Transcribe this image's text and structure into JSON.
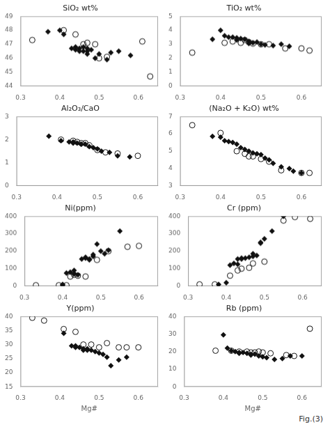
{
  "chart_data": [
    {
      "type": "scatter",
      "title": "SiO₂ wt%",
      "xlim": [
        0.3,
        0.65
      ],
      "xticks": [
        0.3,
        0.4,
        0.5,
        0.6
      ],
      "ylim": [
        44,
        49
      ],
      "yticks": [
        44,
        45,
        46,
        47,
        48,
        49
      ],
      "grid": false,
      "series": [
        {
          "marker": "diamond",
          "color": "#111111",
          "x": [
            0.37,
            0.4,
            0.41,
            0.43,
            0.44,
            0.44,
            0.45,
            0.45,
            0.46,
            0.46,
            0.47,
            0.47,
            0.47,
            0.48,
            0.49,
            0.5,
            0.52,
            0.53,
            0.55,
            0.58
          ],
          "values": [
            47.9,
            48.0,
            47.7,
            46.7,
            46.8,
            46.6,
            46.7,
            46.5,
            46.8,
            46.5,
            46.7,
            46.5,
            46.3,
            46.6,
            46.0,
            46.3,
            45.9,
            46.4,
            46.5,
            46.2
          ]
        },
        {
          "marker": "open_circle",
          "color": "#111111",
          "x": [
            0.33,
            0.41,
            0.44,
            0.46,
            0.47,
            0.49,
            0.5,
            0.52,
            0.61,
            0.63
          ],
          "values": [
            47.3,
            48.0,
            47.7,
            47.0,
            47.1,
            47.0,
            46.0,
            46.1,
            47.2,
            44.7
          ]
        }
      ]
    },
    {
      "type": "scatter",
      "title": "TiO₂ wt%",
      "xlim": [
        0.3,
        0.65
      ],
      "xticks": [
        0.3,
        0.4,
        0.5,
        0.6
      ],
      "ylim": [
        0,
        5
      ],
      "yticks": [
        0,
        1,
        2,
        3,
        4,
        5
      ],
      "grid": false,
      "series": [
        {
          "marker": "diamond",
          "color": "#111111",
          "x": [
            0.38,
            0.4,
            0.41,
            0.42,
            0.43,
            0.44,
            0.44,
            0.45,
            0.46,
            0.47,
            0.47,
            0.48,
            0.49,
            0.5,
            0.51,
            0.53,
            0.55,
            0.57
          ],
          "values": [
            3.35,
            4.0,
            3.6,
            3.5,
            3.5,
            3.45,
            3.3,
            3.4,
            3.35,
            3.2,
            3.05,
            3.1,
            3.15,
            3.0,
            2.95,
            2.9,
            3.0,
            2.85
          ]
        },
        {
          "marker": "open_circle",
          "color": "#111111",
          "x": [
            0.33,
            0.41,
            0.43,
            0.45,
            0.46,
            0.47,
            0.48,
            0.5,
            0.52,
            0.56,
            0.6,
            0.62
          ],
          "values": [
            2.4,
            3.1,
            3.2,
            3.1,
            3.3,
            3.15,
            3.05,
            3.0,
            3.0,
            2.7,
            2.7,
            2.55
          ]
        }
      ]
    },
    {
      "type": "scatter",
      "title": "Al₂O₃/CaO",
      "xlim": [
        0.3,
        0.65
      ],
      "xticks": [
        0.3,
        0.4,
        0.5,
        0.6
      ],
      "ylim": [
        0,
        3
      ],
      "yticks": [
        0,
        1,
        2,
        3
      ],
      "grid": false,
      "series": [
        {
          "marker": "diamond",
          "color": "#111111",
          "x": [
            0.38,
            0.41,
            0.43,
            0.44,
            0.44,
            0.45,
            0.46,
            0.46,
            0.47,
            0.48,
            0.49,
            0.5,
            0.51,
            0.53,
            0.55,
            0.58
          ],
          "values": [
            2.15,
            1.95,
            1.9,
            1.9,
            1.85,
            1.85,
            1.8,
            1.8,
            1.8,
            1.7,
            1.65,
            1.6,
            1.5,
            1.45,
            1.3,
            1.25
          ]
        },
        {
          "marker": "open_circle",
          "color": "#111111",
          "x": [
            0.41,
            0.44,
            0.45,
            0.46,
            0.47,
            0.48,
            0.5,
            0.52,
            0.55,
            0.6
          ],
          "values": [
            2.0,
            1.95,
            1.9,
            1.85,
            1.85,
            1.75,
            1.55,
            1.45,
            1.4,
            1.3
          ]
        }
      ]
    },
    {
      "type": "scatter",
      "title": "(Na₂O + K₂O) wt%",
      "xlim": [
        0.3,
        0.65
      ],
      "xticks": [
        0.3,
        0.4,
        0.5,
        0.6
      ],
      "ylim": [
        3.0,
        7.0
      ],
      "yticks": [
        3,
        4,
        5,
        6,
        7
      ],
      "grid": false,
      "series": [
        {
          "marker": "diamond",
          "color": "#111111",
          "x": [
            0.38,
            0.4,
            0.41,
            0.42,
            0.43,
            0.44,
            0.45,
            0.46,
            0.47,
            0.48,
            0.49,
            0.5,
            0.51,
            0.52,
            0.53,
            0.55,
            0.57,
            0.58,
            0.6
          ],
          "values": [
            5.85,
            5.8,
            5.6,
            5.55,
            5.5,
            5.4,
            5.2,
            5.1,
            5.0,
            4.9,
            4.85,
            4.8,
            4.6,
            4.5,
            4.3,
            4.1,
            4.0,
            3.85,
            3.75
          ]
        },
        {
          "marker": "open_circle",
          "color": "#111111",
          "x": [
            0.33,
            0.4,
            0.44,
            0.46,
            0.47,
            0.48,
            0.5,
            0.52,
            0.55,
            0.6,
            0.62
          ],
          "values": [
            6.5,
            6.05,
            5.0,
            4.85,
            4.7,
            4.7,
            4.55,
            4.4,
            3.9,
            3.75,
            3.75
          ]
        }
      ]
    },
    {
      "type": "scatter",
      "title": "Ni(ppm)",
      "xlim": [
        0.3,
        0.65
      ],
      "xticks": [
        0.3,
        0.4,
        0.5,
        0.6
      ],
      "ylim": [
        0,
        400
      ],
      "yticks": [
        0,
        100,
        200,
        300,
        400
      ],
      "grid": false,
      "series": [
        {
          "marker": "diamond",
          "color": "#111111",
          "x": [
            0.4,
            0.4,
            0.41,
            0.42,
            0.43,
            0.43,
            0.44,
            0.45,
            0.46,
            0.46,
            0.47,
            0.47,
            0.48,
            0.48,
            0.49,
            0.5,
            0.51,
            0.52,
            0.55
          ],
          "values": [
            5,
            10,
            75,
            80,
            90,
            70,
            65,
            155,
            160,
            165,
            155,
            150,
            170,
            180,
            240,
            200,
            185,
            205,
            315
          ]
        },
        {
          "marker": "open_circle",
          "color": "#111111",
          "x": [
            0.33,
            0.39,
            0.41,
            0.42,
            0.43,
            0.44,
            0.46,
            0.49,
            0.52,
            0.57,
            0.6
          ],
          "values": [
            5,
            5,
            5,
            55,
            65,
            60,
            55,
            150,
            200,
            225,
            230
          ]
        }
      ]
    },
    {
      "type": "scatter",
      "title": "Cr (ppm)",
      "xlim": [
        0.3,
        0.65
      ],
      "xticks": [
        0.3,
        0.4,
        0.5,
        0.6
      ],
      "ylim": [
        0,
        400
      ],
      "yticks": [
        0,
        100,
        200,
        300,
        400
      ],
      "grid": false,
      "series": [
        {
          "marker": "diamond",
          "color": "#111111",
          "x": [
            0.38,
            0.4,
            0.41,
            0.42,
            0.43,
            0.43,
            0.44,
            0.44,
            0.45,
            0.46,
            0.47,
            0.47,
            0.48,
            0.49,
            0.49,
            0.5,
            0.52,
            0.55
          ],
          "values": [
            10,
            20,
            120,
            130,
            125,
            155,
            155,
            160,
            160,
            165,
            170,
            185,
            175,
            245,
            250,
            270,
            315,
            400
          ]
        },
        {
          "marker": "open_circle",
          "color": "#111111",
          "x": [
            0.33,
            0.37,
            0.41,
            0.43,
            0.44,
            0.46,
            0.47,
            0.5,
            0.55,
            0.58,
            0.62
          ],
          "values": [
            10,
            10,
            60,
            90,
            100,
            105,
            130,
            140,
            375,
            395,
            385
          ]
        }
      ]
    },
    {
      "type": "scatter",
      "title": "Y(ppm)",
      "xlabel": "Mg#",
      "xlim": [
        0.3,
        0.65
      ],
      "xticks": [
        0.3,
        0.4,
        0.5,
        0.6
      ],
      "ylim": [
        15,
        40
      ],
      "yticks": [
        15,
        20,
        25,
        30,
        35,
        40
      ],
      "grid": false,
      "series": [
        {
          "marker": "diamond",
          "color": "#111111",
          "x": [
            0.41,
            0.43,
            0.44,
            0.44,
            0.45,
            0.46,
            0.46,
            0.47,
            0.47,
            0.48,
            0.49,
            0.5,
            0.51,
            0.52,
            0.53,
            0.55,
            0.57
          ],
          "values": [
            34.0,
            29.5,
            29.5,
            29.0,
            29.0,
            28.5,
            28.0,
            28.5,
            28.0,
            28.0,
            27.5,
            27.0,
            26.5,
            25.5,
            22.5,
            24.5,
            25.5
          ]
        },
        {
          "marker": "open_circle",
          "color": "#111111",
          "x": [
            0.33,
            0.36,
            0.41,
            0.44,
            0.46,
            0.48,
            0.5,
            0.52,
            0.55,
            0.57,
            0.6
          ],
          "values": [
            39.5,
            38.5,
            35.5,
            34.5,
            30.0,
            30.0,
            29.0,
            30.5,
            29.0,
            29.0,
            29.0
          ]
        }
      ]
    },
    {
      "type": "scatter",
      "title": "Rb (ppm)",
      "xlabel": "Mg#",
      "annotations": [
        "Fig.(3)"
      ],
      "xlim": [
        0.3,
        0.65
      ],
      "xticks": [
        0.3,
        0.4,
        0.5,
        0.6
      ],
      "ylim": [
        0,
        40
      ],
      "yticks": [
        0,
        10,
        20,
        30,
        40
      ],
      "grid": false,
      "series": [
        {
          "marker": "diamond",
          "color": "#111111",
          "x": [
            0.4,
            0.41,
            0.42,
            0.43,
            0.44,
            0.44,
            0.45,
            0.46,
            0.47,
            0.47,
            0.48,
            0.49,
            0.5,
            0.51,
            0.53,
            0.55,
            0.57,
            0.6
          ],
          "values": [
            29.5,
            22.0,
            20.5,
            20.0,
            19.5,
            19.0,
            19.5,
            19.0,
            18.5,
            18.0,
            18.5,
            17.5,
            17.0,
            16.5,
            15.5,
            16.0,
            17.5,
            17.5
          ]
        },
        {
          "marker": "open_circle",
          "color": "#111111",
          "x": [
            0.38,
            0.42,
            0.44,
            0.46,
            0.47,
            0.48,
            0.49,
            0.5,
            0.52,
            0.56,
            0.58,
            0.62
          ],
          "values": [
            20.5,
            20.5,
            20.0,
            20.0,
            19.5,
            19.5,
            20.0,
            19.5,
            19.0,
            18.0,
            17.5,
            33.0
          ]
        }
      ]
    }
  ]
}
